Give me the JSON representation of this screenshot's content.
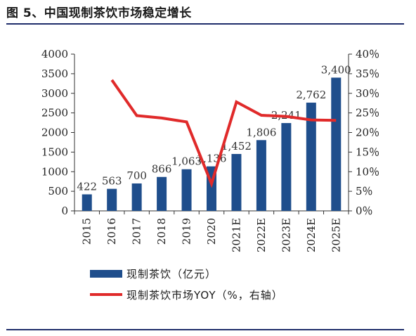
{
  "figure_title": "图 5、中国现制茶饮市场稳定增长",
  "chart_data": {
    "type": "bar",
    "categories": [
      "2015",
      "2016",
      "2017",
      "2018",
      "2019",
      "2020",
      "2021E",
      "2022E",
      "2023E",
      "2024E",
      "2025E"
    ],
    "series": [
      {
        "name": "现制茶饮（亿元）",
        "type": "bar",
        "axis": "left",
        "color": "#1f4e8c",
        "values": [
          422,
          563,
          700,
          866,
          1063,
          1136,
          1452,
          1806,
          2241,
          2762,
          3400
        ],
        "labels": [
          "422",
          "563",
          "700",
          "866",
          "1,063",
          "1,136",
          "1,452",
          "1,806",
          "2,241",
          "2,762",
          "3,400"
        ]
      },
      {
        "name": "现制茶饮市场YOY（%，右轴）",
        "type": "line",
        "axis": "right",
        "color": "#e02a2a",
        "values": [
          null,
          33.4,
          24.3,
          23.7,
          22.7,
          6.9,
          27.8,
          24.4,
          24.1,
          23.2,
          23.1
        ]
      }
    ],
    "y_left": {
      "ylim": [
        0,
        4000
      ],
      "ticks": [
        "0",
        "500",
        "1000",
        "1500",
        "2000",
        "2500",
        "3000",
        "3500",
        "4000"
      ]
    },
    "y_right": {
      "ylim": [
        0,
        40
      ],
      "ticks": [
        "0％",
        "5％",
        "10％",
        "15％",
        "20％",
        "25％",
        "30％",
        "35％",
        "40％"
      ]
    },
    "grid": false,
    "legend": "bottom"
  }
}
